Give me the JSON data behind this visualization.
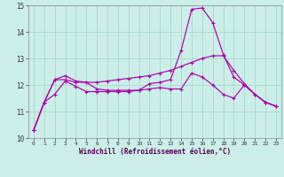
{
  "xlabel": "Windchill (Refroidissement éolien,°C)",
  "xlim": [
    -0.5,
    23.5
  ],
  "ylim": [
    10,
    15
  ],
  "xticks": [
    0,
    1,
    2,
    3,
    4,
    5,
    6,
    7,
    8,
    9,
    10,
    11,
    12,
    13,
    14,
    15,
    16,
    17,
    18,
    19,
    20,
    21,
    22,
    23
  ],
  "yticks": [
    10,
    11,
    12,
    13,
    14,
    15
  ],
  "background_color": "#cceee8",
  "grid_color": "#aaddcc",
  "line_color": "#aa00aa",
  "line1_x": [
    0,
    1,
    2,
    3,
    4,
    5,
    6,
    7,
    8,
    9,
    10,
    11,
    12,
    13,
    14,
    15,
    16,
    17,
    18,
    19,
    20,
    21,
    22,
    23
  ],
  "line1_y": [
    10.3,
    11.35,
    11.65,
    12.15,
    11.95,
    11.75,
    11.75,
    11.75,
    11.75,
    11.75,
    11.8,
    11.85,
    11.9,
    11.85,
    11.85,
    12.45,
    12.3,
    12.0,
    11.65,
    11.5,
    12.0,
    11.65,
    11.35,
    11.2
  ],
  "line2_x": [
    0,
    1,
    2,
    3,
    4,
    5,
    6,
    7,
    8,
    9,
    10,
    11,
    12,
    13,
    14,
    15,
    16,
    17,
    18,
    19,
    20,
    21,
    22,
    23
  ],
  "line2_y": [
    10.3,
    11.35,
    12.2,
    12.35,
    12.15,
    12.1,
    11.85,
    11.8,
    11.8,
    11.8,
    11.8,
    12.05,
    12.1,
    12.2,
    13.3,
    14.85,
    14.9,
    14.35,
    13.15,
    12.3,
    12.0,
    11.65,
    11.35,
    11.2
  ],
  "line3_x": [
    0,
    1,
    2,
    3,
    4,
    5,
    6,
    7,
    8,
    9,
    10,
    11,
    12,
    13,
    14,
    15,
    16,
    17,
    18,
    19,
    20,
    21,
    22,
    23
  ],
  "line3_y": [
    10.3,
    11.35,
    12.2,
    12.2,
    12.1,
    12.1,
    12.1,
    12.15,
    12.2,
    12.25,
    12.3,
    12.35,
    12.45,
    12.55,
    12.7,
    12.85,
    13.0,
    13.1,
    13.1,
    12.55,
    12.05,
    11.65,
    11.35,
    11.2
  ]
}
